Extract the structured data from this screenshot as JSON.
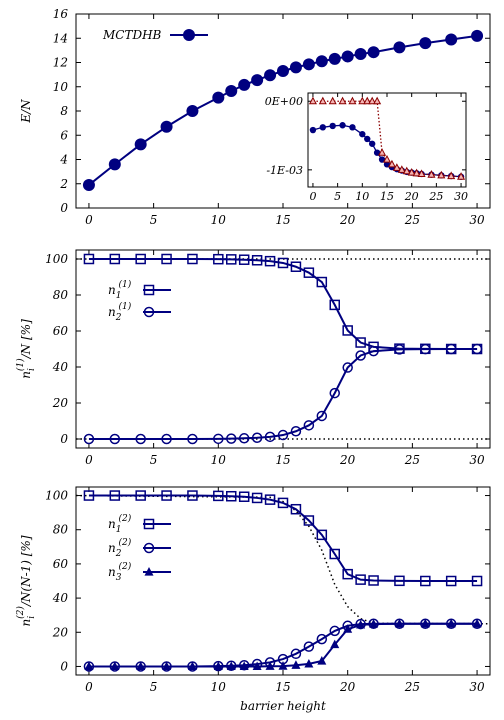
{
  "colors": {
    "navy": "#000080",
    "darkred": "#8b0000",
    "black": "#000000"
  },
  "x_axis_label": "barrier height",
  "chart_data": [
    {
      "panel": "energy",
      "type": "line",
      "ylabel": "E/N",
      "xlim": [
        -1,
        31
      ],
      "ylim": [
        0,
        16
      ],
      "xticks": [
        0,
        5,
        10,
        15,
        20,
        25,
        30
      ],
      "xtick_labels": [
        "0",
        "5",
        "10",
        "15",
        "20",
        "25",
        "30"
      ],
      "yticks": [
        0,
        2,
        4,
        6,
        8,
        10,
        12,
        14,
        16
      ],
      "ytick_labels": [
        "0",
        "2",
        "4",
        "6",
        "8",
        "10",
        "12",
        "14",
        "16"
      ],
      "legend": {
        "position": "top-left",
        "entries": [
          "MCTDHB"
        ]
      },
      "series": [
        {
          "name": "MCTDHB",
          "color": "#000080",
          "marker": "filled-circle",
          "x": [
            0,
            2,
            4,
            6,
            8,
            10,
            11,
            12,
            13,
            14,
            15,
            16,
            17,
            18,
            19,
            20,
            21,
            22,
            24,
            26,
            28,
            30
          ],
          "y": [
            1.9,
            3.6,
            5.25,
            6.7,
            8.0,
            9.1,
            9.65,
            10.15,
            10.55,
            10.95,
            11.3,
            11.6,
            11.85,
            12.1,
            12.3,
            12.5,
            12.7,
            12.85,
            13.25,
            13.6,
            13.9,
            14.2
          ]
        }
      ],
      "inset": {
        "xlim": [
          -1,
          31
        ],
        "ylim": [
          -0.00125,
          0.00012
        ],
        "xticks": [
          0,
          5,
          10,
          15,
          20,
          25,
          30
        ],
        "xtick_labels": [
          "0",
          "5",
          "10",
          "15",
          "20",
          "25",
          "30"
        ],
        "yticks": [
          0,
          -0.001
        ],
        "ytick_labels": [
          "0E+00",
          "-1E-03"
        ],
        "series": [
          {
            "color": "#000080",
            "marker": "filled-circle",
            "x": [
              0,
              2,
              4,
              6,
              8,
              10,
              11,
              12,
              13,
              14,
              15,
              16,
              17,
              18,
              19,
              20,
              21,
              22,
              24,
              26,
              28,
              30
            ],
            "y": [
              -0.00042,
              -0.00038,
              -0.00036,
              -0.00035,
              -0.00038,
              -0.00048,
              -0.00055,
              -0.00062,
              -0.00075,
              -0.00085,
              -0.00092,
              -0.00096,
              -0.00099,
              -0.00101,
              -0.00103,
              -0.00104,
              -0.00105,
              -0.00106,
              -0.00107,
              -0.00108,
              -0.00109,
              -0.0011
            ]
          },
          {
            "color": "#8b0000",
            "marker": "open-triangle",
            "x": [
              0,
              2,
              4,
              6,
              8,
              10,
              11,
              12,
              13,
              14,
              15,
              16,
              17,
              18,
              19,
              20,
              21,
              22,
              24,
              26,
              28,
              30
            ],
            "y": [
              0,
              0,
              0,
              0,
              0,
              0,
              0,
              0,
              0,
              -0.00075,
              -0.00085,
              -0.00092,
              -0.00097,
              -0.001,
              -0.00102,
              -0.00104,
              -0.00105,
              -0.00106,
              -0.00107,
              -0.00108,
              -0.00109,
              -0.0011
            ]
          }
        ]
      }
    },
    {
      "panel": "one-body",
      "type": "line",
      "ylabel_html": "n_i^(1)/N [%]",
      "xlim": [
        -1,
        31
      ],
      "ylim": [
        -5,
        105
      ],
      "xticks": [
        0,
        5,
        10,
        15,
        20,
        25,
        30
      ],
      "xtick_labels": [
        "0",
        "5",
        "10",
        "15",
        "20",
        "25",
        "30"
      ],
      "yticks": [
        0,
        20,
        40,
        60,
        80,
        100
      ],
      "ytick_labels": [
        "0",
        "20",
        "40",
        "60",
        "80",
        "100"
      ],
      "legend": {
        "position": "mid-left"
      },
      "series": [
        {
          "label_base": "n",
          "label_sub": "1",
          "label_sup": "(1)",
          "color": "#000080",
          "marker": "open-square",
          "x": [
            0,
            2,
            4,
            6,
            8,
            10,
            11,
            12,
            13,
            14,
            15,
            16,
            17,
            18,
            19,
            20,
            21,
            22,
            24,
            26,
            28,
            30
          ],
          "y": [
            100,
            100,
            100,
            100,
            100,
            99.9,
            99.8,
            99.6,
            99.3,
            98.8,
            97.8,
            95.7,
            92.4,
            87.2,
            74.5,
            60.3,
            53.6,
            51.2,
            50.2,
            50.1,
            50.0,
            50.0
          ]
        },
        {
          "label_base": "n",
          "label_sub": "2",
          "label_sup": "(1)",
          "color": "#000080",
          "marker": "open-circle",
          "x": [
            0,
            2,
            4,
            6,
            8,
            10,
            11,
            12,
            13,
            14,
            15,
            16,
            17,
            18,
            19,
            20,
            21,
            22,
            24,
            26,
            28,
            30
          ],
          "y": [
            0,
            0,
            0,
            0,
            0,
            0.1,
            0.2,
            0.4,
            0.7,
            1.2,
            2.2,
            4.3,
            7.6,
            12.8,
            25.5,
            39.7,
            46.4,
            48.8,
            49.8,
            49.9,
            50.0,
            50.0
          ]
        }
      ],
      "reference_lines": [
        {
          "style": "dotted",
          "color": "#000000",
          "x": [
            -1,
            31
          ],
          "y": [
            100,
            100
          ]
        },
        {
          "style": "dotted",
          "color": "#000000",
          "x": [
            -1,
            31
          ],
          "y": [
            0,
            0
          ]
        }
      ]
    },
    {
      "panel": "two-body",
      "type": "line",
      "ylabel_html": "n_i^(2)/N(N-1) [%]",
      "xlabel": "barrier height",
      "xlim": [
        -1,
        31
      ],
      "ylim": [
        -5,
        105
      ],
      "xticks": [
        0,
        5,
        10,
        15,
        20,
        25,
        30
      ],
      "xtick_labels": [
        "0",
        "5",
        "10",
        "15",
        "20",
        "25",
        "30"
      ],
      "yticks": [
        0,
        20,
        40,
        60,
        80,
        100
      ],
      "ytick_labels": [
        "0",
        "20",
        "40",
        "60",
        "80",
        "100"
      ],
      "legend": {
        "position": "mid-left"
      },
      "series": [
        {
          "label_base": "n",
          "label_sub": "1",
          "label_sup": "(2)",
          "color": "#000080",
          "marker": "open-square",
          "x": [
            0,
            2,
            4,
            6,
            8,
            10,
            11,
            12,
            13,
            14,
            15,
            16,
            17,
            18,
            19,
            20,
            21,
            22,
            24,
            26,
            28,
            30
          ],
          "y": [
            100,
            100,
            100,
            100,
            100,
            99.8,
            99.6,
            99.3,
            98.6,
            97.6,
            95.7,
            92.0,
            85.4,
            77.0,
            65.8,
            54.0,
            50.8,
            50.3,
            50.1,
            50.0,
            50.0,
            50.0
          ]
        },
        {
          "label_base": "n",
          "label_sub": "2",
          "label_sup": "(2)",
          "color": "#000080",
          "marker": "open-circle",
          "x": [
            0,
            2,
            4,
            6,
            8,
            10,
            11,
            12,
            13,
            14,
            15,
            16,
            17,
            18,
            19,
            20,
            21,
            22,
            24,
            26,
            28,
            30
          ],
          "y": [
            0,
            0,
            0,
            0,
            0,
            0.2,
            0.4,
            0.7,
            1.4,
            2.4,
            4.3,
            7.4,
            11.6,
            16.0,
            20.8,
            23.8,
            24.8,
            25.0,
            25.0,
            25.0,
            25.0,
            25.0
          ]
        },
        {
          "label_base": "n",
          "label_sub": "3",
          "label_sup": "(2)",
          "color": "#000080",
          "marker": "filled-triangle",
          "x": [
            0,
            2,
            4,
            6,
            8,
            10,
            11,
            12,
            13,
            14,
            15,
            16,
            17,
            18,
            19,
            20,
            21,
            22,
            24,
            26,
            28,
            30
          ],
          "y": [
            0,
            0,
            0,
            0,
            0,
            0,
            0,
            0,
            0,
            0.1,
            0.2,
            0.7,
            1.5,
            3.2,
            12.8,
            21.8,
            24.3,
            24.8,
            25.0,
            25.0,
            25.0,
            25.0
          ]
        }
      ],
      "reference_lines": [
        {
          "style": "dotted",
          "color": "#000000",
          "x": [
            -1,
            14,
            15,
            16,
            17,
            18,
            19,
            20,
            21,
            22,
            31
          ],
          "y": [
            100,
            99.0,
            96.5,
            91.0,
            82.0,
            68.0,
            48.0,
            35.0,
            28.0,
            25.2,
            25.0
          ]
        }
      ]
    }
  ]
}
